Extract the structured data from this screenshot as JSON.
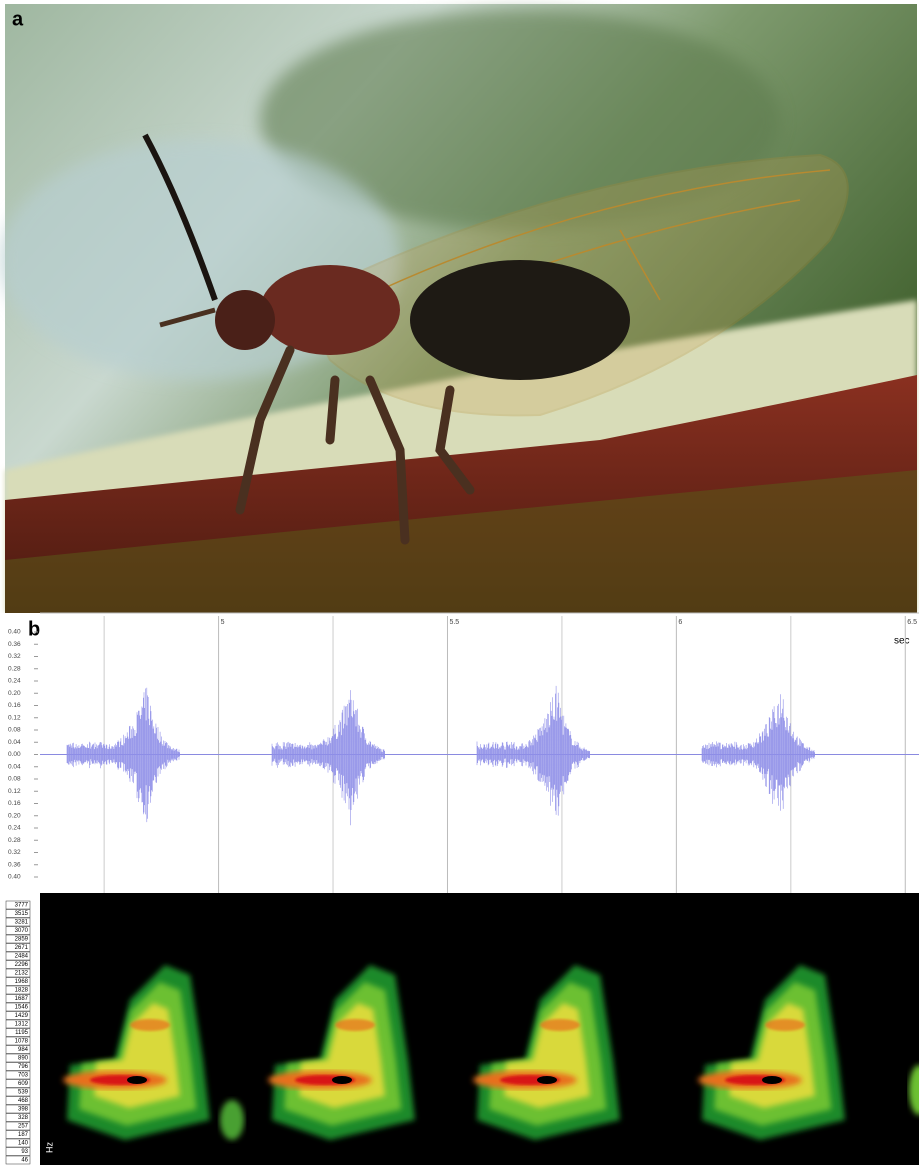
{
  "photo": {
    "label": "a"
  },
  "waveform": {
    "label": "b",
    "unit": "sec",
    "xlim": [
      4.54,
      6.53
    ],
    "xticks": [
      5,
      5.5,
      6,
      6.5
    ],
    "ytick_labels": [
      "0.40",
      "0.36",
      "0.32",
      "0.28",
      "0.24",
      "0.20",
      "0.16",
      "0.12",
      "0.08",
      "0.04",
      "0.00",
      "0.04",
      "0.08",
      "0.12",
      "0.16",
      "0.20",
      "0.24",
      "0.28",
      "0.32",
      "0.36",
      "0.40"
    ]
  },
  "spectrogram": {
    "unit": "Hz",
    "frequency_labels": [
      "3777",
      "3515",
      "3281",
      "3070",
      "2859",
      "2671",
      "2484",
      "2296",
      "2132",
      "1968",
      "1828",
      "1687",
      "1546",
      "1429",
      "1312",
      "1195",
      "1078",
      "984",
      "890",
      "796",
      "703",
      "609",
      "539",
      "468",
      "398",
      "328",
      "257",
      "187",
      "140",
      "93",
      "46"
    ]
  }
}
